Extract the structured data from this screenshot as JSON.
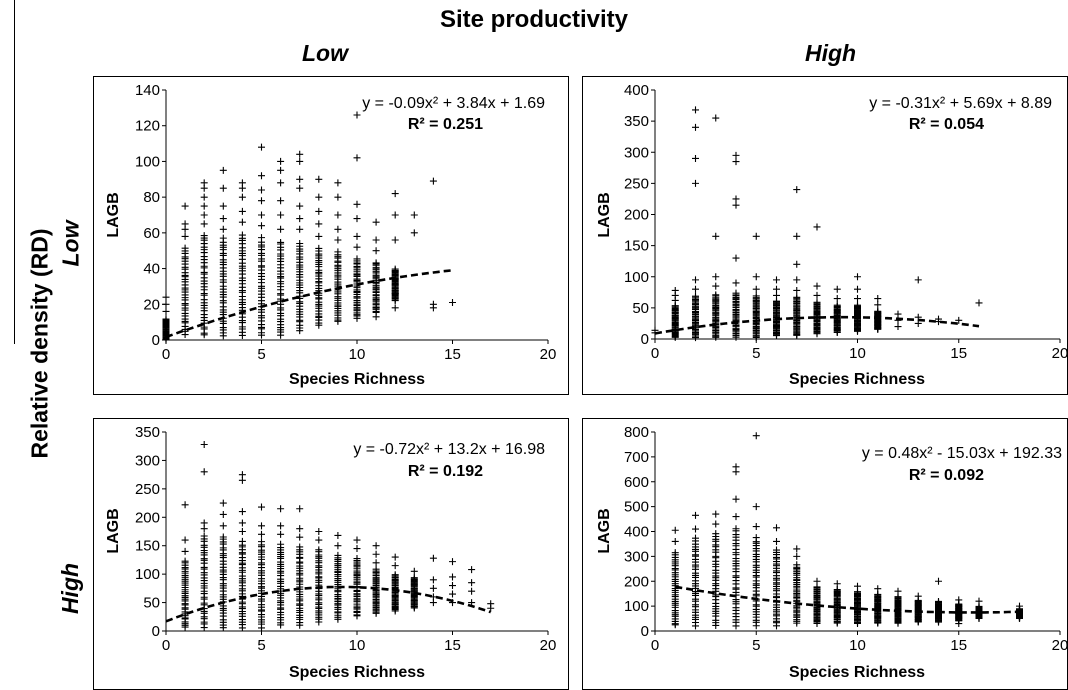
{
  "header": {
    "title": "Site productivity",
    "col_low": "Low",
    "col_high": "High",
    "row_low": "Low",
    "row_high": "High",
    "side_label": "Relative density (RD)"
  },
  "chart_data": [
    {
      "type": "scatter",
      "productivity": "Low",
      "density": "Low",
      "xlabel": "Species Richness",
      "ylabel": "LAGB",
      "xlim": [
        0,
        20
      ],
      "ylim": [
        0,
        140
      ],
      "xticks": [
        0,
        5,
        10,
        15,
        20
      ],
      "yticks": [
        0,
        20,
        40,
        60,
        80,
        100,
        120,
        140
      ],
      "equation": "y = -0.09x² + 3.84x + 1.69",
      "r2": "R² = 0.251",
      "fit": {
        "a": -0.09,
        "b": 3.84,
        "c": 1.69,
        "x_range": [
          0,
          15
        ]
      },
      "columns": [
        {
          "x": 0,
          "band": [
            0,
            12
          ],
          "outliers": [
            16,
            20,
            24
          ]
        },
        {
          "x": 1,
          "band": [
            3,
            52
          ],
          "outliers": [
            58,
            62,
            65,
            75
          ]
        },
        {
          "x": 2,
          "band": [
            2,
            60
          ],
          "outliers": [
            65,
            70,
            75,
            80,
            85,
            88
          ]
        },
        {
          "x": 3,
          "band": [
            2,
            58
          ],
          "outliers": [
            62,
            68,
            75,
            85,
            95
          ]
        },
        {
          "x": 4,
          "band": [
            2,
            60
          ],
          "outliers": [
            66,
            72,
            80,
            85,
            88
          ]
        },
        {
          "x": 5,
          "band": [
            2,
            58
          ],
          "outliers": [
            64,
            70,
            78,
            84,
            92,
            108
          ]
        },
        {
          "x": 6,
          "band": [
            2,
            56
          ],
          "outliers": [
            62,
            70,
            78,
            88,
            95,
            100
          ]
        },
        {
          "x": 7,
          "band": [
            5,
            55
          ],
          "outliers": [
            62,
            68,
            75,
            85,
            90,
            100,
            104
          ]
        },
        {
          "x": 8,
          "band": [
            8,
            52
          ],
          "outliers": [
            58,
            65,
            72,
            80,
            90
          ]
        },
        {
          "x": 9,
          "band": [
            10,
            50
          ],
          "outliers": [
            56,
            62,
            70,
            80,
            88
          ]
        },
        {
          "x": 10,
          "band": [
            12,
            46
          ],
          "outliers": [
            52,
            58,
            68,
            76,
            102,
            126
          ]
        },
        {
          "x": 11,
          "band": [
            15,
            44
          ],
          "outliers": [
            13,
            18,
            50,
            56,
            66
          ]
        },
        {
          "x": 12,
          "band": [
            22,
            40
          ],
          "outliers": [
            18,
            26,
            56,
            70,
            82
          ]
        },
        {
          "x": 13,
          "band": null,
          "outliers": [
            60,
            70
          ]
        },
        {
          "x": 14,
          "band": null,
          "outliers": [
            18,
            20,
            89
          ]
        },
        {
          "x": 15,
          "band": null,
          "outliers": [
            21
          ]
        }
      ]
    },
    {
      "type": "scatter",
      "productivity": "High",
      "density": "Low",
      "xlabel": "Species Richness",
      "ylabel": "LAGB",
      "xlim": [
        0,
        20
      ],
      "ylim": [
        0,
        400
      ],
      "xticks": [
        0,
        5,
        10,
        15,
        20
      ],
      "yticks": [
        0,
        50,
        100,
        150,
        200,
        250,
        300,
        350,
        400
      ],
      "equation": "y = -0.31x² + 5.69x + 8.89",
      "r2": "R² = 0.054",
      "fit": {
        "a": -0.31,
        "b": 5.69,
        "c": 8.89,
        "x_range": [
          0,
          16
        ]
      },
      "columns": [
        {
          "x": 0,
          "band": null,
          "outliers": [
            10,
            14
          ]
        },
        {
          "x": 1,
          "band": [
            2,
            55
          ],
          "outliers": [
            62,
            70,
            78
          ]
        },
        {
          "x": 2,
          "band": [
            2,
            70
          ],
          "outliers": [
            80,
            95,
            250,
            290,
            340,
            368
          ]
        },
        {
          "x": 3,
          "band": [
            2,
            72
          ],
          "outliers": [
            85,
            100,
            165,
            355
          ]
        },
        {
          "x": 4,
          "band": [
            2,
            75
          ],
          "outliers": [
            90,
            130,
            215,
            225,
            285,
            295
          ]
        },
        {
          "x": 5,
          "band": [
            2,
            70
          ],
          "outliers": [
            80,
            100,
            165
          ]
        },
        {
          "x": 6,
          "band": [
            5,
            62
          ],
          "outliers": [
            70,
            80,
            95
          ]
        },
        {
          "x": 7,
          "band": [
            5,
            68
          ],
          "outliers": [
            78,
            95,
            120,
            165,
            240
          ]
        },
        {
          "x": 8,
          "band": [
            8,
            60
          ],
          "outliers": [
            70,
            85,
            180
          ]
        },
        {
          "x": 9,
          "band": [
            10,
            55
          ],
          "outliers": [
            65,
            80
          ]
        },
        {
          "x": 10,
          "band": [
            12,
            55
          ],
          "outliers": [
            65,
            80,
            100
          ]
        },
        {
          "x": 11,
          "band": [
            15,
            45
          ],
          "outliers": [
            55,
            65
          ]
        },
        {
          "x": 12,
          "band": null,
          "outliers": [
            20,
            30,
            40
          ]
        },
        {
          "x": 13,
          "band": null,
          "outliers": [
            25,
            35,
            95
          ]
        },
        {
          "x": 14,
          "band": null,
          "outliers": [
            28,
            32
          ]
        },
        {
          "x": 15,
          "band": null,
          "outliers": [
            30
          ]
        },
        {
          "x": 16,
          "band": null,
          "outliers": [
            58
          ]
        }
      ]
    },
    {
      "type": "scatter",
      "productivity": "Low",
      "density": "High",
      "xlabel": "Species Richness",
      "ylabel": "LAGB",
      "xlim": [
        0,
        20
      ],
      "ylim": [
        0,
        350
      ],
      "xticks": [
        0,
        5,
        10,
        15,
        20
      ],
      "yticks": [
        0,
        50,
        100,
        150,
        200,
        250,
        300,
        350
      ],
      "equation": "y = -0.72x² + 13.2x + 16.98",
      "r2": "R² = 0.192",
      "fit": {
        "a": -0.72,
        "b": 13.2,
        "c": 16.98,
        "x_range": [
          0,
          17
        ]
      },
      "columns": [
        {
          "x": 1,
          "band": [
            5,
            125
          ],
          "outliers": [
            140,
            160,
            222
          ]
        },
        {
          "x": 2,
          "band": [
            5,
            170
          ],
          "outliers": [
            180,
            190,
            280,
            328
          ]
        },
        {
          "x": 3,
          "band": [
            5,
            170
          ],
          "outliers": [
            185,
            205,
            225
          ]
        },
        {
          "x": 4,
          "band": [
            5,
            160
          ],
          "outliers": [
            175,
            190,
            210,
            265,
            275
          ]
        },
        {
          "x": 5,
          "band": [
            5,
            160
          ],
          "outliers": [
            170,
            185,
            218
          ]
        },
        {
          "x": 6,
          "band": [
            10,
            155
          ],
          "outliers": [
            170,
            185,
            215
          ]
        },
        {
          "x": 7,
          "band": [
            10,
            150
          ],
          "outliers": [
            165,
            180,
            215
          ]
        },
        {
          "x": 8,
          "band": [
            15,
            145
          ],
          "outliers": [
            160,
            175
          ]
        },
        {
          "x": 9,
          "band": [
            20,
            135
          ],
          "outliers": [
            150,
            168
          ]
        },
        {
          "x": 10,
          "band": [
            25,
            130
          ],
          "outliers": [
            145,
            160
          ]
        },
        {
          "x": 11,
          "band": [
            30,
            110
          ],
          "outliers": [
            120,
            135,
            150
          ]
        },
        {
          "x": 12,
          "band": [
            35,
            100
          ],
          "outliers": [
            115,
            130
          ]
        },
        {
          "x": 13,
          "band": [
            40,
            95
          ],
          "outliers": [
            105
          ]
        },
        {
          "x": 14,
          "band": null,
          "outliers": [
            50,
            60,
            75,
            90,
            128
          ]
        },
        {
          "x": 15,
          "band": null,
          "outliers": [
            50,
            65,
            80,
            95,
            122
          ]
        },
        {
          "x": 16,
          "band": null,
          "outliers": [
            50,
            70,
            85,
            108
          ]
        },
        {
          "x": 17,
          "band": null,
          "outliers": [
            40,
            48
          ]
        }
      ]
    },
    {
      "type": "scatter",
      "productivity": "High",
      "density": "High",
      "xlabel": "Species Richness",
      "ylabel": "LAGB",
      "xlim": [
        0,
        20
      ],
      "ylim": [
        0,
        800
      ],
      "xticks": [
        0,
        5,
        10,
        15,
        20
      ],
      "yticks": [
        0,
        100,
        200,
        300,
        400,
        500,
        600,
        700,
        800
      ],
      "equation": "y = 0.48x² - 15.03x + 192.33",
      "r2": "R² = 0.092",
      "fit": {
        "a": 0.48,
        "b": -15.03,
        "c": 192.33,
        "x_range": [
          1,
          18
        ]
      },
      "columns": [
        {
          "x": 1,
          "band": [
            20,
            320
          ],
          "outliers": [
            360,
            405
          ]
        },
        {
          "x": 2,
          "band": [
            20,
            380
          ],
          "outliers": [
            410,
            465
          ]
        },
        {
          "x": 3,
          "band": [
            20,
            400
          ],
          "outliers": [
            430,
            470
          ]
        },
        {
          "x": 4,
          "band": [
            20,
            420
          ],
          "outliers": [
            460,
            530,
            640,
            660
          ]
        },
        {
          "x": 5,
          "band": [
            20,
            380
          ],
          "outliers": [
            420,
            500,
            785
          ]
        },
        {
          "x": 6,
          "band": [
            20,
            330
          ],
          "outliers": [
            360,
            415
          ]
        },
        {
          "x": 7,
          "band": [
            30,
            270
          ],
          "outliers": [
            300,
            330
          ]
        },
        {
          "x": 8,
          "band": [
            30,
            180
          ],
          "outliers": [
            200
          ]
        },
        {
          "x": 9,
          "band": [
            30,
            170
          ],
          "outliers": [
            190
          ]
        },
        {
          "x": 10,
          "band": [
            30,
            160
          ],
          "outliers": [
            180
          ]
        },
        {
          "x": 11,
          "band": [
            30,
            150
          ],
          "outliers": [
            170
          ]
        },
        {
          "x": 12,
          "band": [
            30,
            140
          ],
          "outliers": [
            160
          ]
        },
        {
          "x": 13,
          "band": [
            35,
            125
          ],
          "outliers": [
            140
          ]
        },
        {
          "x": 14,
          "band": [
            35,
            120
          ],
          "outliers": [
            200
          ]
        },
        {
          "x": 15,
          "band": [
            40,
            110
          ],
          "outliers": [
            30,
            125
          ]
        },
        {
          "x": 16,
          "band": [
            50,
            100
          ],
          "outliers": [
            120
          ]
        },
        {
          "x": 18,
          "band": [
            50,
            90
          ],
          "outliers": [
            100
          ]
        }
      ]
    }
  ]
}
